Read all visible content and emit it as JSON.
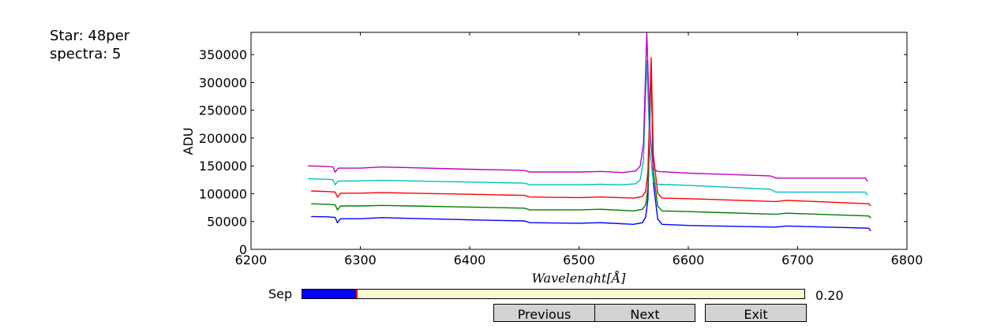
{
  "info": {
    "star_line": "Star: 48per",
    "spectra_line": "spectra: 5"
  },
  "chart_data": {
    "type": "line",
    "title": "",
    "xlabel": "Wavelenght[Å]",
    "ylabel": "ADU",
    "xlim": [
      6200,
      6800
    ],
    "ylim": [
      0,
      390000
    ],
    "xticks": [
      "6200",
      "6300",
      "6400",
      "6500",
      "6600",
      "6700",
      "6800"
    ],
    "yticks": [
      "0",
      "50000",
      "100000",
      "150000",
      "200000",
      "250000",
      "300000",
      "350000"
    ],
    "grid": false,
    "series": [
      {
        "color": "#0000ff",
        "x": [
          6255,
          6270,
          6277,
          6279,
          6282,
          6300,
          6320,
          6400,
          6450,
          6455,
          6500,
          6520,
          6550,
          6558,
          6561,
          6563,
          6566,
          6568,
          6572,
          6576,
          6600,
          6680,
          6690,
          6765,
          6767
        ],
        "y": [
          59000,
          58500,
          57500,
          48000,
          55000,
          55000,
          57000,
          53000,
          51000,
          48000,
          47000,
          48000,
          45000,
          48000,
          58000,
          90000,
          332000,
          120000,
          55000,
          45000,
          43000,
          40000,
          42000,
          38000,
          33000
        ]
      },
      {
        "color": "#008000",
        "x": [
          6255,
          6270,
          6277,
          6279,
          6282,
          6300,
          6320,
          6400,
          6450,
          6455,
          6500,
          6520,
          6550,
          6558,
          6561,
          6563,
          6566,
          6568,
          6572,
          6576,
          6600,
          6680,
          6690,
          6765,
          6767
        ],
        "y": [
          82000,
          81000,
          80000,
          71000,
          78000,
          78000,
          79000,
          76000,
          74000,
          71000,
          71000,
          72000,
          69000,
          72000,
          80000,
          110000,
          335000,
          140000,
          78000,
          69000,
          68000,
          63000,
          65000,
          60000,
          56000
        ]
      },
      {
        "color": "#ff0000",
        "x": [
          6255,
          6270,
          6277,
          6279,
          6282,
          6300,
          6320,
          6400,
          6450,
          6455,
          6500,
          6520,
          6550,
          6558,
          6561,
          6563,
          6566,
          6568,
          6572,
          6576,
          6600,
          6680,
          6690,
          6765,
          6767
        ],
        "y": [
          105000,
          104000,
          103000,
          94000,
          101000,
          101000,
          102000,
          99000,
          97000,
          94000,
          93000,
          94000,
          92000,
          95000,
          104000,
          140000,
          345000,
          170000,
          101000,
          92000,
          91000,
          86000,
          88000,
          82000,
          78000
        ]
      },
      {
        "color": "#00bfbf",
        "x": [
          6252,
          6270,
          6275,
          6277,
          6280,
          6300,
          6320,
          6400,
          6450,
          6455,
          6500,
          6520,
          6540,
          6552,
          6556,
          6559,
          6562,
          6565,
          6568,
          6572,
          6600,
          6675,
          6680,
          6762,
          6764
        ],
        "y": [
          127000,
          126000,
          125000,
          116000,
          123000,
          123000,
          124000,
          121000,
          119000,
          116000,
          116000,
          117000,
          116000,
          118000,
          125000,
          160000,
          340000,
          175000,
          122000,
          117000,
          115000,
          108000,
          103000,
          103000,
          97000
        ]
      },
      {
        "color": "#bf00bf",
        "x": [
          6252,
          6270,
          6275,
          6277,
          6280,
          6300,
          6320,
          6400,
          6450,
          6455,
          6500,
          6520,
          6540,
          6552,
          6556,
          6559,
          6562,
          6565,
          6568,
          6572,
          6600,
          6675,
          6680,
          6762,
          6764
        ],
        "y": [
          150000,
          149000,
          148000,
          139000,
          146000,
          146000,
          148000,
          144000,
          142000,
          139000,
          139000,
          140000,
          138000,
          141000,
          150000,
          190000,
          390000,
          210000,
          145000,
          140000,
          137000,
          132000,
          128000,
          128000,
          122000
        ]
      }
    ]
  },
  "slider": {
    "label": "Sep",
    "value_text": "0.20",
    "fraction": 0.11,
    "fill_color": "#0000ff",
    "track_color": "#fafad2"
  },
  "buttons": {
    "previous_label": "Previous",
    "next_label": "Next",
    "exit_label": "Exit"
  }
}
